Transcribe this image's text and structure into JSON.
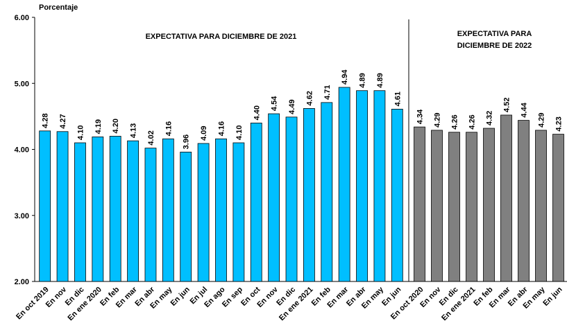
{
  "chart_data": {
    "type": "bar",
    "ylabel": "Porcentaje",
    "ylim": [
      2,
      6
    ],
    "yticks": [
      {
        "value": 2,
        "label": "2.00"
      },
      {
        "value": 3,
        "label": "3.00"
      },
      {
        "value": 4,
        "label": "4.00"
      },
      {
        "value": 5,
        "label": "5.00"
      },
      {
        "value": 6,
        "label": "6.00"
      }
    ],
    "groups": [
      {
        "title_lines": [
          "EXPECTATIVA  PARA  DICIEMBRE DE 2021"
        ],
        "color": "#00bfff",
        "categories": [
          "En oct 2019",
          "En nov",
          "En dic",
          "En ene 2020",
          "En feb",
          "En mar",
          "En abr",
          "En may",
          "En jun",
          "En jul",
          "En ago",
          "En sep",
          "En oct",
          "En nov",
          "En dic",
          "En ene 2021",
          "En feb",
          "En mar",
          "En abr",
          "En may",
          "En jun"
        ],
        "values": [
          4.28,
          4.27,
          4.1,
          4.19,
          4.2,
          4.13,
          4.02,
          4.16,
          3.96,
          4.09,
          4.16,
          4.1,
          4.4,
          4.54,
          4.49,
          4.62,
          4.71,
          4.94,
          4.89,
          4.89,
          4.61
        ],
        "value_labels": [
          "4.28",
          "4.27",
          "4.10",
          "4.19",
          "4.20",
          "4.13",
          "4.02",
          "4.16",
          "3.96",
          "4.09",
          "4.16",
          "4.10",
          "4.40",
          "4.54",
          "4.49",
          "4.62",
          "4.71",
          "4.94",
          "4.89",
          "4.89",
          "4.61"
        ]
      },
      {
        "title_lines": [
          "EXPECTATIVA  PARA",
          "DICIEMBRE DE 2022"
        ],
        "color": "#808080",
        "categories": [
          "En oct 2020",
          "En nov",
          "En dic",
          "En ene 2021",
          "En feb",
          "En mar",
          "En abr",
          "En may",
          "En jun"
        ],
        "values": [
          4.34,
          4.29,
          4.26,
          4.26,
          4.32,
          4.52,
          4.44,
          4.29,
          4.23
        ],
        "value_labels": [
          "4.34",
          "4.29",
          "4.26",
          "4.26",
          "4.32",
          "4.52",
          "4.44",
          "4.29",
          "4.23"
        ]
      }
    ]
  }
}
